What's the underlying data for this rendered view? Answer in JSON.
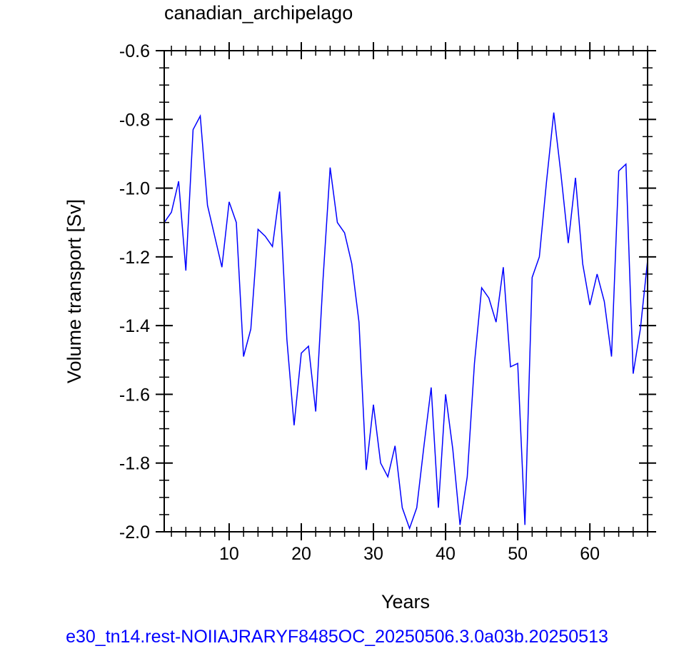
{
  "chart_data": {
    "type": "line",
    "title": "canadian_archipelago",
    "xlabel": "Years",
    "ylabel": "Volume transport [Sv]",
    "xlim": [
      1,
      68
    ],
    "ylim": [
      -2.0,
      -0.6
    ],
    "xticks": [
      10,
      20,
      30,
      40,
      50,
      60
    ],
    "xtick_labels": [
      "10",
      "20",
      "30",
      "40",
      "50",
      "60"
    ],
    "yticks": [
      -2.0,
      -1.8,
      -1.6,
      -1.4,
      -1.2,
      -1.0,
      -0.8,
      -0.6
    ],
    "ytick_labels": [
      "-2.0",
      "-1.8",
      "-1.6",
      "-1.4",
      "-1.2",
      "-1.0",
      "-0.8",
      "-0.6"
    ],
    "grid": false,
    "series": [
      {
        "color": "#0000ff",
        "x": [
          1,
          2,
          3,
          4,
          5,
          6,
          7,
          8,
          9,
          10,
          11,
          12,
          13,
          14,
          15,
          16,
          17,
          18,
          19,
          20,
          21,
          22,
          23,
          24,
          25,
          26,
          27,
          28,
          29,
          30,
          31,
          32,
          33,
          34,
          35,
          36,
          37,
          38,
          39,
          40,
          41,
          42,
          43,
          44,
          45,
          46,
          47,
          48,
          49,
          50,
          51,
          52,
          53,
          54,
          55,
          56,
          57,
          58,
          59,
          60,
          61,
          62,
          63,
          64,
          65,
          66,
          67,
          68
        ],
        "values": [
          -1.1,
          -1.07,
          -0.98,
          -1.24,
          -0.83,
          -0.79,
          -1.05,
          -1.14,
          -1.23,
          -1.04,
          -1.1,
          -1.49,
          -1.41,
          -1.12,
          -1.14,
          -1.17,
          -1.01,
          -1.44,
          -1.69,
          -1.48,
          -1.46,
          -1.65,
          -1.27,
          -0.94,
          -1.1,
          -1.13,
          -1.22,
          -1.39,
          -1.82,
          -1.63,
          -1.8,
          -1.84,
          -1.75,
          -1.93,
          -1.99,
          -1.93,
          -1.75,
          -1.58,
          -1.93,
          -1.6,
          -1.76,
          -1.98,
          -1.84,
          -1.51,
          -1.29,
          -1.32,
          -1.39,
          -1.23,
          -1.52,
          -1.51,
          -1.98,
          -1.26,
          -1.2,
          -0.98,
          -0.78,
          -0.96,
          -1.16,
          -0.97,
          -1.22,
          -1.34,
          -1.25,
          -1.33,
          -1.49,
          -0.95,
          -0.93,
          -1.54,
          -1.41,
          -1.21
        ]
      }
    ],
    "footer": "e30_tn14.rest-NOIIAJRARYF8485OC_20250506.3.0a03b.20250513"
  }
}
